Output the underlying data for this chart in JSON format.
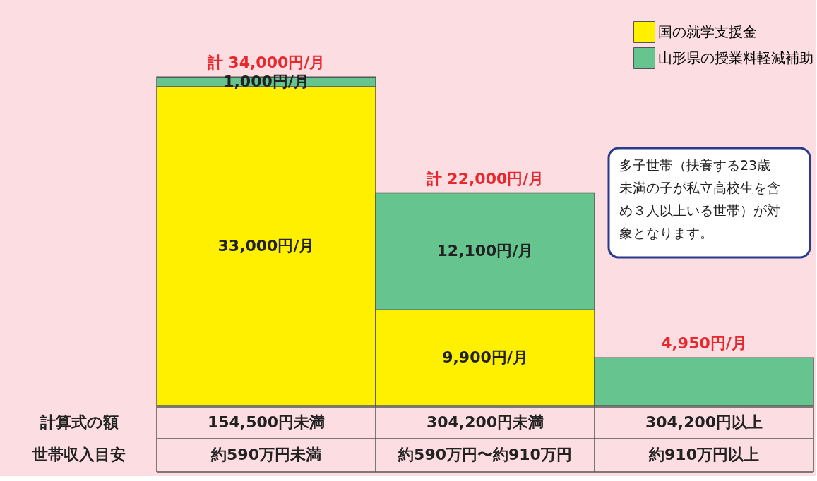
{
  "chart_data": {
    "type": "bar",
    "stacked": true,
    "legend": "top right",
    "categories": [
      "154,500円未満",
      "304,200円未満",
      "304,200円以上"
    ],
    "series": [
      {
        "name": "国の就学支援金",
        "color": "#fff000",
        "values": [
          33000,
          9900,
          null
        ],
        "value_labels": [
          "33,000円/月",
          "9,900円/月",
          null
        ]
      },
      {
        "name": "山形県の授業料軽減補助",
        "color": "#66c48f",
        "values": [
          1000,
          12100,
          4950
        ],
        "value_labels": [
          "1,000円/月",
          "12,100円/月",
          null
        ]
      }
    ],
    "totals": [
      "計 34,000円/月",
      "計 22,000円/月",
      "4,950円/月"
    ],
    "annotations": [
      "計算式の額",
      "世帯収入目安",
      "約590万円未満",
      "約590万円〜約910万円",
      "約910万円以上",
      "多子世帯（扶養する23歳未満の子が私立高校生を含め３人以上いる世帯）が対象となります。"
    ]
  }
}
